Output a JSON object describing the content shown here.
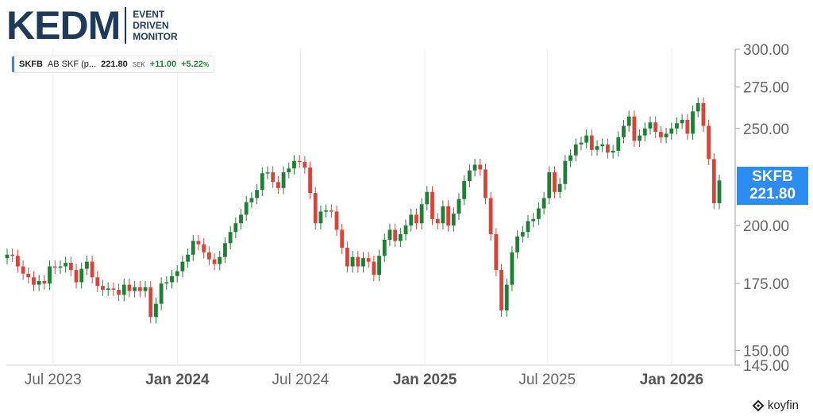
{
  "brand": {
    "logo": "KEDM",
    "tagline": [
      "EVENT",
      "DRIVEN",
      "MONITOR"
    ]
  },
  "legend": {
    "symbol": "SKFB",
    "name": "AB SKF (p...",
    "price": "221.80",
    "currency": "SEK",
    "change": "+11.00",
    "change_pct": "+5.22",
    "pct_sign": "%"
  },
  "price_tag": {
    "symbol": "SKFB",
    "price": "221.80"
  },
  "footer": {
    "brand": "koyfin"
  },
  "colors": {
    "up": "#1e7f35",
    "down": "#d9443a",
    "accent": "#2d8cf0",
    "grid": "#eceef1",
    "axis_text": "#666666"
  },
  "chart_data": {
    "type": "candlestick",
    "y_scale": "log",
    "ylim": [
      145,
      300
    ],
    "y_ticks": [
      "300.00",
      "275.00",
      "250.00",
      "200.00",
      "175.00",
      "150.00",
      "145.00"
    ],
    "y_tick_values": [
      300,
      275,
      250,
      200,
      175,
      150,
      145
    ],
    "x_ticks": [
      {
        "label": "Jul 2023",
        "date": "2023-07-01",
        "bold": false
      },
      {
        "label": "Jan 2024",
        "date": "2024-01-01",
        "bold": true
      },
      {
        "label": "Jul 2024",
        "date": "2024-07-01",
        "bold": false
      },
      {
        "label": "Jan 2025",
        "date": "2025-01-01",
        "bold": true
      },
      {
        "label": "Jul 2025",
        "date": "2025-07-01",
        "bold": false
      },
      {
        "label": "Jan 2026",
        "date": "2026-01-01",
        "bold": true
      }
    ],
    "x_start": "2023-04-23",
    "x_end": "2026-04-05",
    "candles_weekly_close": [
      187.0,
      186.5,
      182.0,
      179.0,
      177.5,
      174.5,
      176.0,
      175.0,
      182.0,
      181.5,
      182.0,
      183.5,
      180.5,
      175.5,
      181.0,
      184.0,
      177.5,
      174.0,
      172.5,
      173.0,
      172.5,
      170.5,
      174.5,
      172.0,
      173.5,
      172.0,
      173.5,
      162.0,
      167.0,
      175.0,
      175.5,
      178.0,
      180.0,
      184.0,
      187.0,
      193.0,
      191.5,
      188.0,
      185.0,
      183.0,
      186.0,
      192.0,
      197.0,
      201.0,
      205.0,
      211.0,
      213.0,
      217.0,
      225.5,
      226.0,
      221.0,
      218.0,
      226.0,
      228.0,
      232.0,
      231.5,
      228.5,
      215.5,
      201.0,
      206.5,
      207.0,
      206.5,
      198.0,
      190.0,
      182.0,
      186.0,
      182.0,
      185.5,
      184.0,
      178.5,
      186.5,
      193.5,
      198.0,
      193.0,
      196.0,
      200.0,
      205.0,
      201.0,
      210.0,
      216.0,
      203.0,
      201.0,
      209.0,
      200.0,
      205.5,
      212.5,
      221.5,
      227.0,
      230.0,
      227.5,
      213.0,
      196.0,
      180.5,
      164.5,
      174.5,
      188.0,
      195.0,
      197.0,
      202.0,
      203.0,
      208.0,
      213.0,
      226.0,
      216.0,
      220.0,
      232.0,
      235.0,
      241.0,
      242.0,
      246.0,
      238.0,
      240.0,
      241.0,
      236.5,
      237.5,
      245.0,
      251.5,
      257.0,
      243.0,
      246.0,
      250.0,
      253.5,
      248.0,
      245.0,
      247.0,
      250.0,
      253.0,
      255.0,
      247.0,
      260.0,
      265.0,
      251.5,
      233.0,
      210.5,
      221.8
    ]
  }
}
